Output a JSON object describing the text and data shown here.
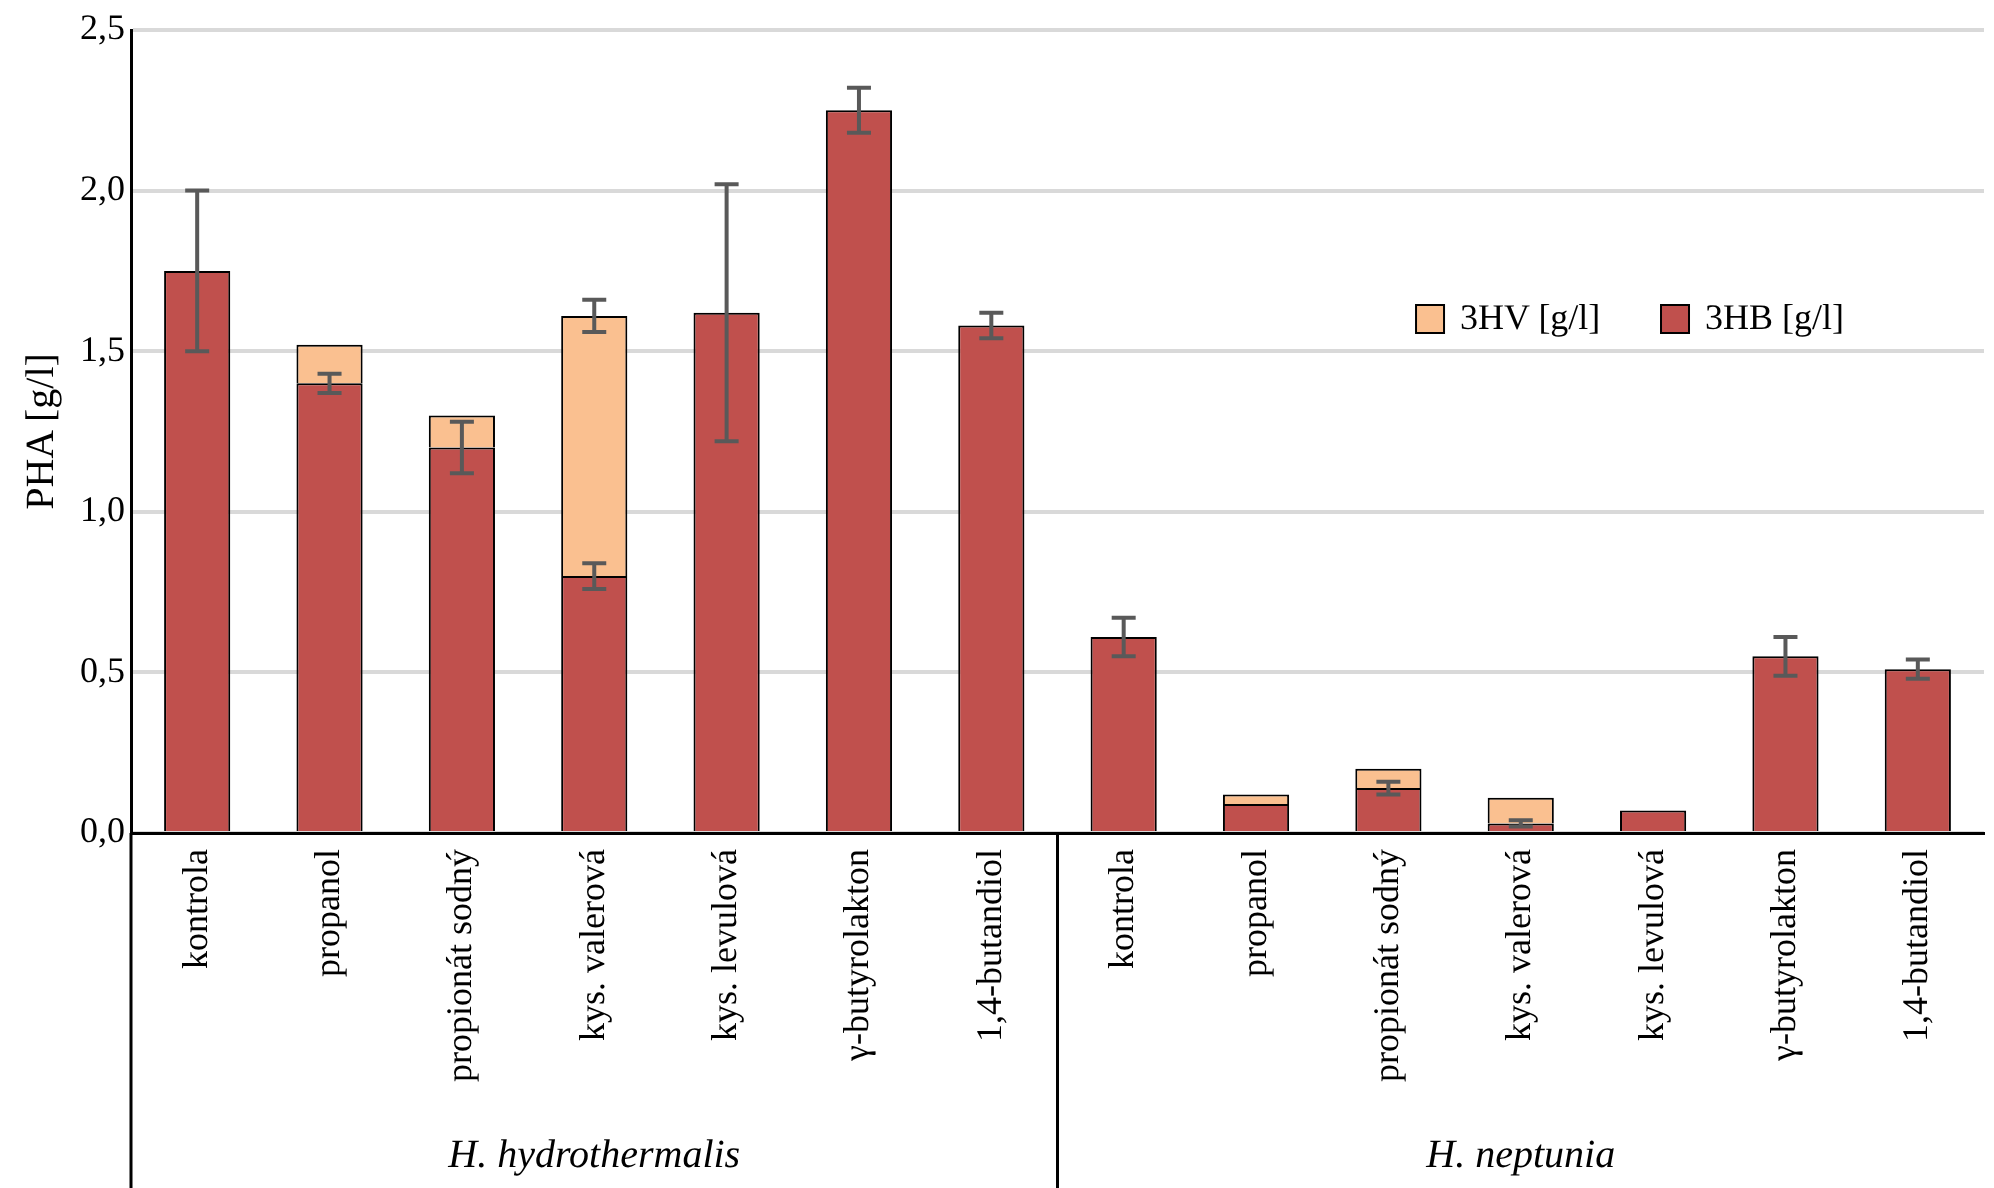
{
  "chart_data": {
    "type": "bar",
    "stacked": true,
    "ylabel": "PHA [g/l]",
    "categories": [
      "kontrola",
      "propanol",
      "propionát sodný",
      "kys. valerová",
      "kys. levulová",
      "γ-butyrolakton",
      "1,4-butandiol",
      "kontrola",
      "propanol",
      "propionát sodný",
      "kys. valerová",
      "kys. levulová",
      "γ-butyrolakton",
      "1,4-butandiol"
    ],
    "annotations": [
      {
        "text": "H. hydrothermalis"
      },
      {
        "text": "H. neptunia"
      }
    ],
    "series": [
      {
        "name": "3HB [g/l]",
        "color": "#c0504d",
        "values": [
          1.75,
          1.4,
          1.2,
          0.8,
          1.62,
          2.25,
          1.58,
          0.61,
          0.09,
          0.14,
          0.03,
          0.07,
          0.55,
          0.51
        ],
        "errors": [
          0.25,
          0.03,
          0.08,
          0.04,
          0.4,
          0.07,
          0.04,
          0.06,
          null,
          0.02,
          0.01,
          null,
          0.06,
          0.03
        ]
      },
      {
        "name": "3HV [g/l]",
        "color": "#fac090",
        "values": [
          0,
          0.12,
          0.1,
          0.81,
          0,
          0,
          0,
          0,
          0.03,
          0.06,
          0.08,
          0,
          0,
          0
        ],
        "errors": [
          null,
          null,
          null,
          0.05,
          null,
          null,
          null,
          null,
          null,
          null,
          null,
          null,
          null,
          null
        ]
      }
    ],
    "ylim": [
      0,
      2.5
    ],
    "yticks": [
      {
        "value": 0,
        "label": "0,0"
      },
      {
        "value": 0.5,
        "label": "0,5"
      },
      {
        "value": 1,
        "label": "1,0"
      },
      {
        "value": 1.5,
        "label": "1,5"
      },
      {
        "value": 2,
        "label": "2,0"
      },
      {
        "value": 2.5,
        "label": "2,5"
      }
    ],
    "grid": "y",
    "legend": "top right"
  }
}
